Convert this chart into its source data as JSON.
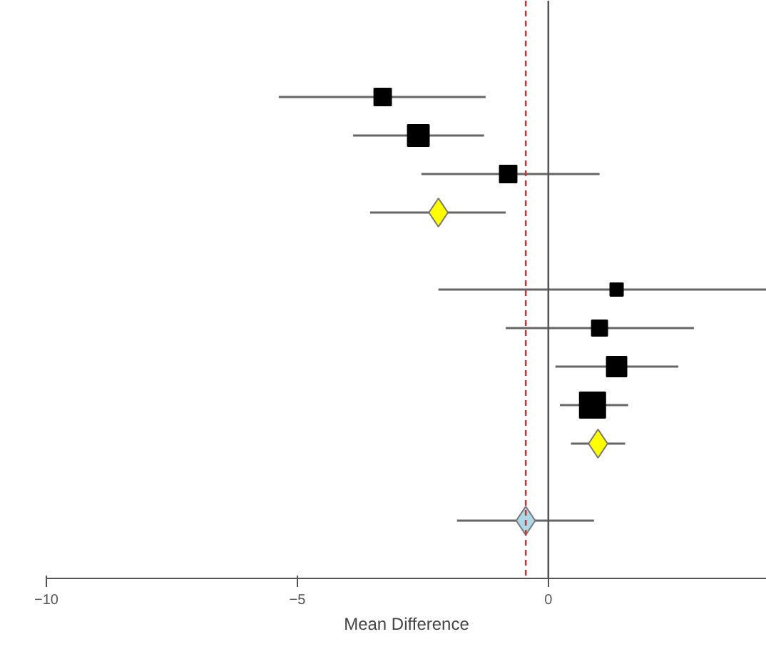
{
  "chart_data": {
    "type": "scatter",
    "orientation": "horizontal",
    "xlabel": "Mean Difference",
    "xlim": [
      -10,
      4.35
    ],
    "xticks": [
      -10,
      -5,
      0
    ],
    "tick_labels": "x",
    "grid": false,
    "categories": [
      null,
      null,
      null,
      null,
      null,
      null,
      null,
      null,
      null,
      null,
      null,
      null,
      null,
      null,
      null
    ],
    "series": [
      {
        "type": "bubble",
        "marker": "square",
        "color": "#000000",
        "values": [
          null,
          null,
          -3.3,
          -2.59,
          -0.8,
          null,
          null,
          1.36,
          1.02,
          1.36,
          0.88,
          null,
          null,
          null,
          null
        ],
        "sizes": [
          null,
          null,
          0.44,
          0.69,
          0.44,
          null,
          null,
          0.25,
          0.37,
          0.6,
          1,
          null,
          null,
          null,
          null
        ],
        "errors": [
          null,
          null,
          [
            -5.37,
            -1.25
          ],
          [
            -3.89,
            -1.28
          ],
          [
            -2.53,
            1.02
          ],
          null,
          null,
          [
            -2.19,
            4.35
          ],
          [
            -0.85,
            2.9
          ],
          [
            0.14,
            2.59
          ],
          [
            0.23,
            1.59
          ],
          null,
          null,
          null,
          null
        ]
      },
      {
        "marker": "diamond",
        "color": "#ffff00",
        "values": [
          null,
          null,
          null,
          null,
          null,
          -2.19,
          null,
          null,
          null,
          null,
          null,
          0.99,
          null,
          null,
          null
        ],
        "errors": [
          null,
          null,
          null,
          null,
          null,
          [
            -3.55,
            -0.85
          ],
          null,
          null,
          null,
          null,
          null,
          [
            0.45,
            1.53
          ],
          null,
          null,
          null
        ]
      },
      {
        "marker": "diamond",
        "color": "#add8e6",
        "values": [
          null,
          null,
          null,
          null,
          null,
          null,
          null,
          null,
          null,
          null,
          null,
          null,
          null,
          -0.45,
          null
        ],
        "errors": [
          null,
          null,
          null,
          null,
          null,
          null,
          null,
          null,
          null,
          null,
          null,
          null,
          null,
          [
            -1.82,
            0.91
          ],
          null
        ]
      }
    ],
    "ref_lines": [
      {
        "axis": "x",
        "value": 0,
        "color": "#555555",
        "line_style": "solid"
      },
      {
        "axis": "x",
        "value": -0.45,
        "color": "#cc3333",
        "line_style": "dashed"
      }
    ]
  }
}
